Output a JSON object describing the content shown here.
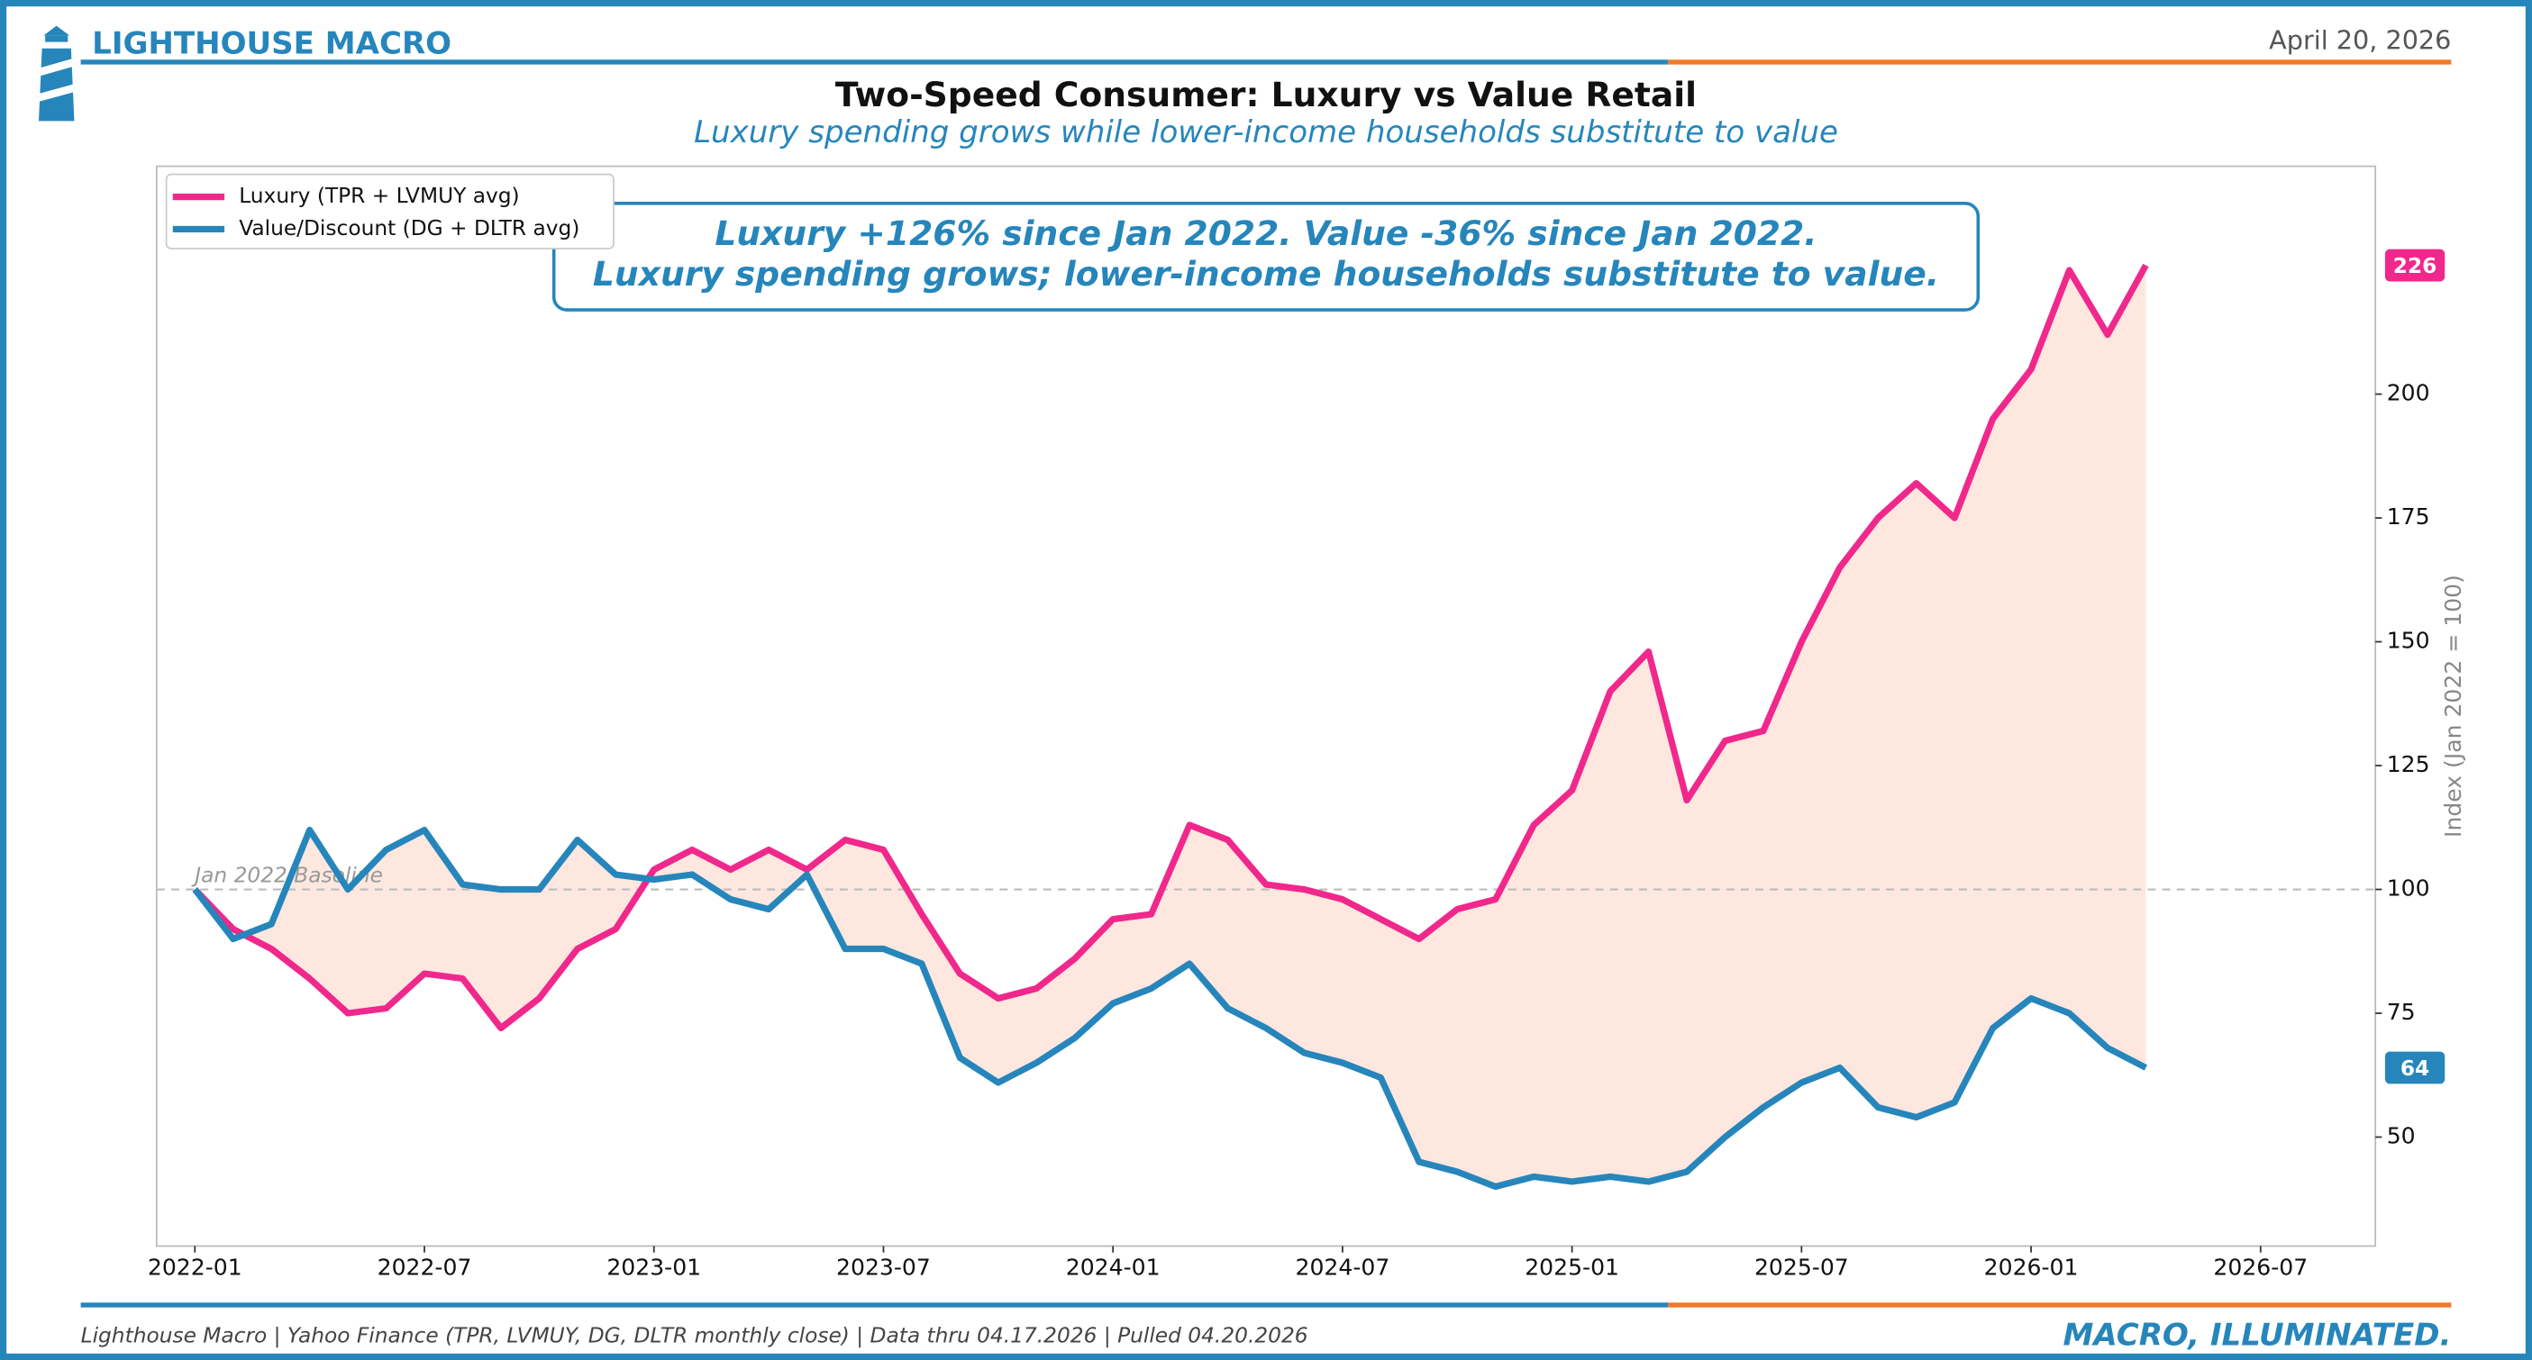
{
  "chart_data": {
    "type": "line",
    "brand": "LIGHTHOUSE MACRO",
    "date": "April 20, 2026",
    "title": "Two-Speed Consumer: Luxury vs Value Retail",
    "subtitle": "Luxury spending grows while lower-income households substitute to value",
    "annotation": [
      "Luxury +126% since Jan 2022. Value -36% since Jan 2022.",
      "Luxury spending grows; lower-income households substitute to value."
    ],
    "y_label": "Index (Jan 2022 = 100)",
    "baseline": {
      "value": 100,
      "label": "Jan 2022 Baseline"
    },
    "source": "Lighthouse Macro | Yahoo Finance (TPR, LVMUY, DG, DLTR monthly close) | Data thru 04.17.2026 | Pulled 04.20.2026",
    "tagline": "MACRO, ILLUMINATED.",
    "legend": "upper left",
    "x": [
      "2022-01",
      "2022-02",
      "2022-03",
      "2022-04",
      "2022-05",
      "2022-06",
      "2022-07",
      "2022-08",
      "2022-09",
      "2022-10",
      "2022-11",
      "2022-12",
      "2023-01",
      "2023-02",
      "2023-03",
      "2023-04",
      "2023-05",
      "2023-06",
      "2023-07",
      "2023-08",
      "2023-09",
      "2023-10",
      "2023-11",
      "2023-12",
      "2024-01",
      "2024-02",
      "2024-03",
      "2024-04",
      "2024-05",
      "2024-06",
      "2024-07",
      "2024-08",
      "2024-09",
      "2024-10",
      "2024-11",
      "2024-12",
      "2025-01",
      "2025-02",
      "2025-03",
      "2025-04",
      "2025-05",
      "2025-06",
      "2025-07",
      "2025-08",
      "2025-09",
      "2025-10",
      "2025-11",
      "2025-12",
      "2026-01",
      "2026-02",
      "2026-03",
      "2026-04"
    ],
    "series": [
      {
        "name": "Luxury (TPR + LVMUY avg)",
        "color": "#f0288c",
        "values": [
          100,
          92,
          88,
          82,
          75,
          76,
          83,
          82,
          72,
          78,
          88,
          92,
          104,
          108,
          104,
          108,
          104,
          110,
          108,
          95,
          83,
          78,
          80,
          86,
          94,
          95,
          113,
          110,
          101,
          100,
          98,
          94,
          90,
          96,
          98,
          113,
          120,
          140,
          148,
          118,
          130,
          132,
          150,
          165,
          175,
          182,
          175,
          195,
          205,
          225,
          212,
          226
        ]
      },
      {
        "name": "Value/Discount (DG + DLTR avg)",
        "color": "#2686bb",
        "values": [
          100,
          90,
          93,
          112,
          100,
          108,
          112,
          101,
          100,
          100,
          110,
          103,
          102,
          103,
          98,
          96,
          103,
          88,
          88,
          85,
          66,
          61,
          65,
          70,
          77,
          80,
          85,
          76,
          72,
          67,
          65,
          62,
          45,
          43,
          40,
          42,
          41,
          42,
          41,
          43,
          50,
          56,
          61,
          64,
          56,
          54,
          57,
          72,
          78,
          75,
          68,
          64
        ]
      }
    ],
    "xlim": [
      "2021-12",
      "2026-10"
    ],
    "xticks": [
      "2022-01",
      "2022-07",
      "2023-01",
      "2023-07",
      "2024-01",
      "2024-07",
      "2025-01",
      "2025-07",
      "2026-01",
      "2026-07"
    ],
    "ylim": [
      28,
      246
    ],
    "yticks": [
      50,
      75,
      100,
      125,
      150,
      175,
      200
    ],
    "fill_color": "#fde3d9",
    "grid": false
  }
}
